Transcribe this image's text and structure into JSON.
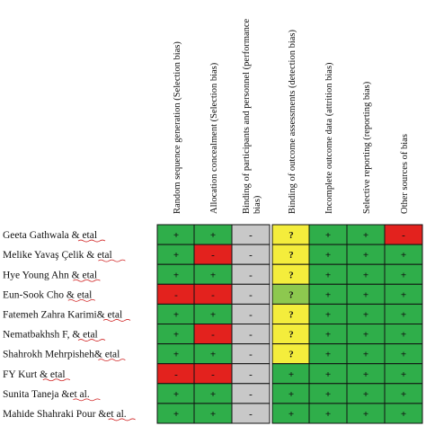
{
  "chart_data": {
    "type": "table",
    "columns": [
      "Random sequence generation (Selection bias)",
      "Allocation concealment (Selection bias)",
      "Binding of participants and personnel (performance bias)",
      "Binding of outcome assessments (detection bias)",
      "Incomplete outcome data (attrition bias)",
      "Selective reporting (reporting bias)",
      "Other sources of bias"
    ],
    "rows": [
      {
        "label": "Geeta Gathwala & etal",
        "cells": [
          "+",
          "+",
          "-",
          "?",
          "+",
          "+",
          "-"
        ],
        "status": [
          "low",
          "low",
          "unclear",
          "caution",
          "low",
          "low",
          "high"
        ]
      },
      {
        "label": "Melike Yavaş Çelik & etal",
        "cells": [
          "+",
          "-",
          "-",
          "?",
          "+",
          "+",
          "+"
        ],
        "status": [
          "low",
          "high",
          "unclear",
          "caution",
          "low",
          "low",
          "low"
        ]
      },
      {
        "label": "Hye Young Ahn & etal",
        "cells": [
          "+",
          "+",
          "-",
          "?",
          "+",
          "+",
          "+"
        ],
        "status": [
          "low",
          "low",
          "unclear",
          "caution",
          "low",
          "low",
          "low"
        ]
      },
      {
        "label": "Eun-Sook Cho & etal",
        "cells": [
          "-",
          "-",
          "-",
          "?",
          "+",
          "+",
          "+"
        ],
        "status": [
          "high",
          "high",
          "unclear",
          "light",
          "low",
          "low",
          "low"
        ]
      },
      {
        "label": "Fatemeh Zahra Karimi& etal",
        "cells": [
          "+",
          "+",
          "-",
          "?",
          "+",
          "+",
          "+"
        ],
        "status": [
          "low",
          "low",
          "unclear",
          "caution",
          "low",
          "low",
          "low"
        ]
      },
      {
        "label": "Nematbakhsh F, & etal",
        "cells": [
          "+",
          "-",
          "-",
          "?",
          "+",
          "+",
          "+"
        ],
        "status": [
          "low",
          "high",
          "unclear",
          "caution",
          "low",
          "low",
          "low"
        ]
      },
      {
        "label": "Shahrokh Mehrpisheh& etal",
        "cells": [
          "+",
          "+",
          "-",
          "?",
          "+",
          "+",
          "+"
        ],
        "status": [
          "low",
          "low",
          "unclear",
          "caution",
          "low",
          "low",
          "low"
        ]
      },
      {
        "label": "FY Kurt & etal",
        "cells": [
          "-",
          "-",
          "-",
          "+",
          "+",
          "+",
          "+"
        ],
        "status": [
          "high",
          "high",
          "unclear",
          "low",
          "low",
          "low",
          "low"
        ]
      },
      {
        "label": "Sunita Taneja &et al.",
        "cells": [
          "+",
          "+",
          "-",
          "+",
          "+",
          "+",
          "+"
        ],
        "status": [
          "low",
          "low",
          "unclear",
          "low",
          "low",
          "low",
          "low"
        ]
      },
      {
        "label": "Mahide Shahraki Pour &et al.",
        "cells": [
          "+",
          "+",
          "-",
          "+",
          "+",
          "+",
          "+"
        ],
        "status": [
          "low",
          "low",
          "unclear",
          "low",
          "low",
          "low",
          "low"
        ]
      }
    ],
    "colors": {
      "low": "#2fae4a",
      "high": "#e3221e",
      "unclear": "#c8c8c8",
      "caution": "#f4ed3c",
      "light": "#8dc84f",
      "border": "#111111"
    }
  }
}
